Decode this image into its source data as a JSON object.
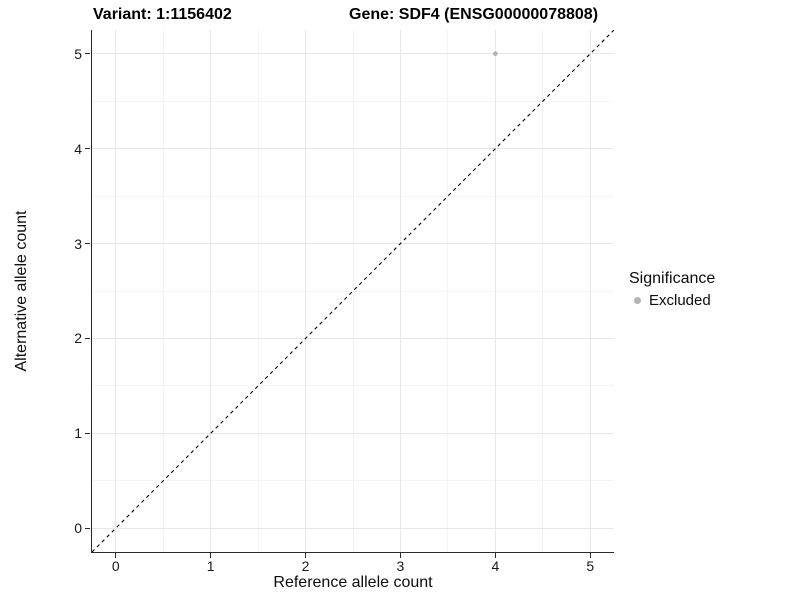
{
  "chart_data": {
    "type": "scatter",
    "title_left": "Variant: 1:1156402",
    "title_right": "Gene: SDF4 (ENSG00000078808)",
    "xlabel": "Reference allele count",
    "ylabel": "Alternative allele count",
    "xlim": [
      -0.25,
      5.25
    ],
    "ylim": [
      -0.25,
      5.25
    ],
    "x_ticks": [
      0,
      1,
      2,
      3,
      4,
      5
    ],
    "y_ticks": [
      0,
      1,
      2,
      3,
      4,
      5
    ],
    "x_minor_ticks": [
      0.5,
      1.5,
      2.5,
      3.5,
      4.5
    ],
    "y_minor_ticks": [
      0.5,
      1.5,
      2.5,
      3.5,
      4.5
    ],
    "grid": true,
    "series": [
      {
        "name": "Excluded",
        "color": "#b4b4b4",
        "points": [
          {
            "x": 4,
            "y": 5
          }
        ]
      }
    ],
    "reference_line": {
      "type": "identity",
      "style": "dashed",
      "from": [
        -0.25,
        -0.25
      ],
      "to": [
        5.25,
        5.25
      ],
      "color": "#000000"
    },
    "legend": {
      "title": "Significance",
      "position": "right",
      "items": [
        {
          "label": "Excluded",
          "color": "#b4b4b4"
        }
      ]
    },
    "colors": {
      "grid_major": "#e7e7e7",
      "grid_minor": "#f4f4f4",
      "axis_line": "#2a2a2a",
      "point": "#b4b4b4"
    }
  }
}
